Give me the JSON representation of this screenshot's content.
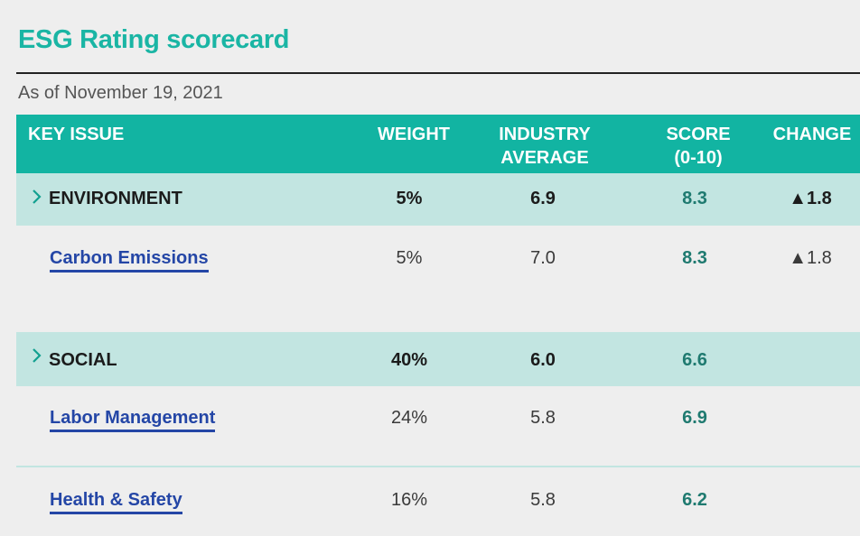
{
  "title": "ESG Rating scorecard",
  "as_of": "As of November 19, 2021",
  "colors": {
    "accent": "#12b4a2",
    "category_row": "#c2e5e1",
    "link": "#2446a6",
    "score": "#1f7a70"
  },
  "header": {
    "key_issue": "KEY ISSUE",
    "weight": "WEIGHT",
    "industry_average": "INDUSTRY\nAVERAGE",
    "score": "SCORE\n(0-10)",
    "change": "CHANGE"
  },
  "rows": [
    {
      "type": "category",
      "name": "ENVIRONMENT",
      "weight": "5%",
      "industry_average": "6.9",
      "score": "8.3",
      "change": "▲1.8",
      "icon": "chevron-right-icon"
    },
    {
      "type": "issue",
      "name": "Carbon Emissions",
      "weight": "5%",
      "industry_average": "7.0",
      "score": "8.3",
      "change": "▲1.8"
    },
    {
      "type": "category",
      "name": "SOCIAL",
      "weight": "40%",
      "industry_average": "6.0",
      "score": "6.6",
      "change": "",
      "icon": "chevron-right-icon"
    },
    {
      "type": "issue",
      "name": "Labor Management",
      "weight": "24%",
      "industry_average": "5.8",
      "score": "6.9",
      "change": ""
    },
    {
      "type": "issue",
      "name": "Health & Safety",
      "weight": "16%",
      "industry_average": "5.8",
      "score": "6.2",
      "change": ""
    }
  ]
}
